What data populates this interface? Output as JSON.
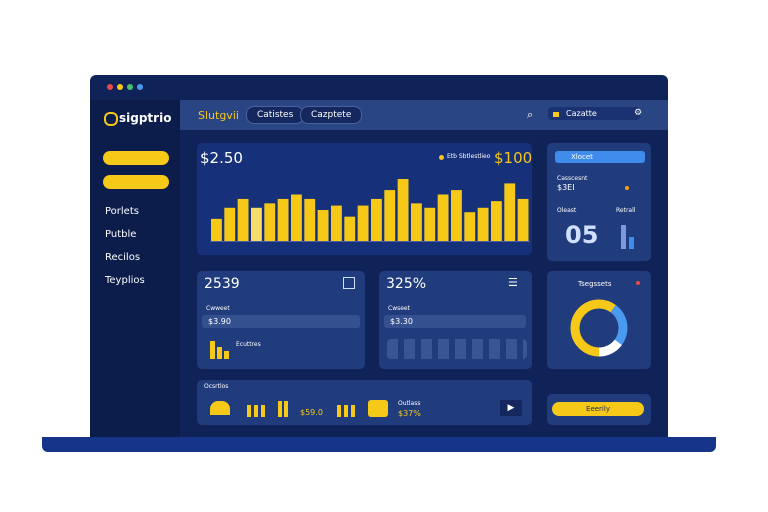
{
  "app": {
    "logo": "sigptrio",
    "top_nav": [
      "Slutgvii",
      "Catistes",
      "Cazptete"
    ],
    "search": "Cazatte",
    "sidebar": [
      "Porlets",
      "Putble",
      "Recilos",
      "Teyplios"
    ],
    "main_chart": {
      "title": "$2.50",
      "legend": "Etb Sbtlestlieo",
      "total": "$100",
      "bars": [
        20,
        30,
        38,
        30,
        34,
        38,
        42,
        38,
        28,
        32,
        22,
        32,
        38,
        46,
        56,
        34,
        30,
        42,
        46,
        26,
        30,
        36,
        52,
        38
      ]
    },
    "card_a": {
      "value": "2539",
      "label": "Cwweet",
      "input": "$3.90",
      "note": "Ecuttres"
    },
    "card_b": {
      "value": "325%",
      "label": "Cwseet",
      "input": "$3.30"
    },
    "side_card": {
      "pill": "Xlocet",
      "label": "Casscesnt",
      "amount": "$3EI",
      "sub": "Oleast",
      "big": "05",
      "tag": "Retrall"
    },
    "donut_card": {
      "title": "Tsegssets",
      "segments": [
        60,
        25,
        15
      ]
    },
    "bottom_card": {
      "title": "Ocsrtlos",
      "value_a": "$59.0",
      "label": "Outlass",
      "value_b": "$37%"
    },
    "button": "Eeerily"
  }
}
